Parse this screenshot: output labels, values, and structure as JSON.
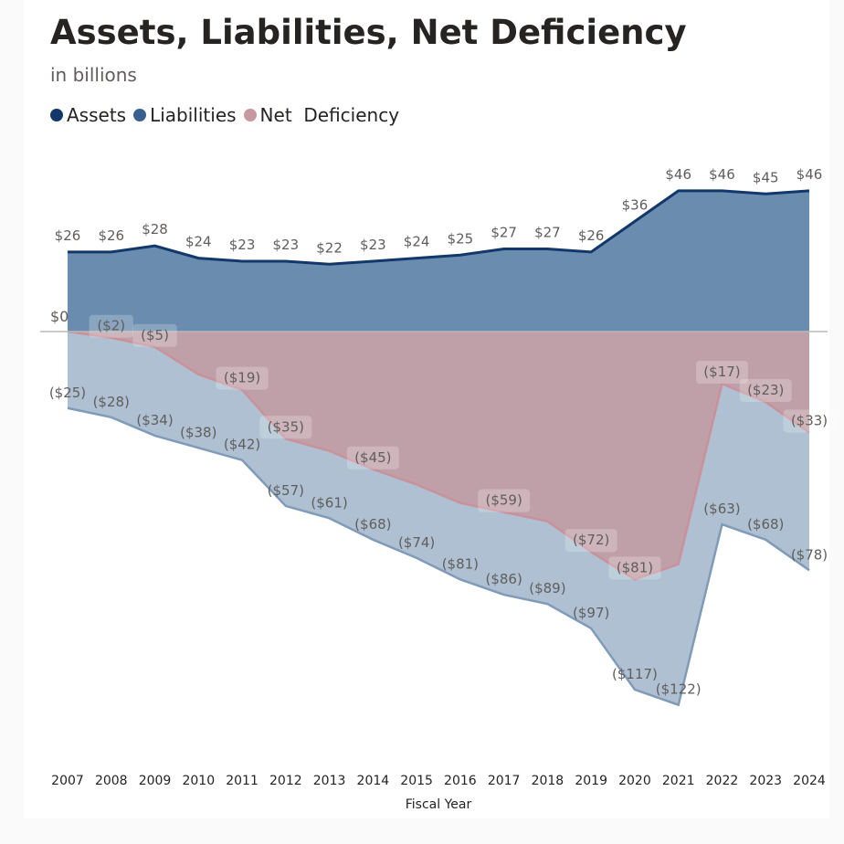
{
  "chart_data": {
    "type": "area",
    "title": "Assets, Liabilities, Net Deficiency",
    "subtitle": "in billions",
    "xlabel": "Fiscal Year",
    "legend_position": "top-left",
    "x": [
      "2007",
      "2008",
      "2009",
      "2010",
      "2011",
      "2012",
      "2013",
      "2014",
      "2015",
      "2016",
      "2017",
      "2018",
      "2019",
      "2020",
      "2021",
      "2022",
      "2023",
      "2024"
    ],
    "zero_label": "$0",
    "series": [
      {
        "name": "Assets",
        "color": "#12386b",
        "fill": "#6a8caf",
        "values": [
          26,
          26,
          28,
          24,
          23,
          23,
          22,
          23,
          24,
          25,
          27,
          27,
          26,
          36,
          46,
          46,
          45,
          46
        ],
        "labels": [
          "$26",
          "$26",
          "$28",
          "$24",
          "$23",
          "$23",
          "$22",
          "$23",
          "$24",
          "$25",
          "$27",
          "$27",
          "$26",
          "$36",
          "$46",
          "$46",
          "$45",
          "$46"
        ]
      },
      {
        "name": "Liabilities",
        "color": "#3a6090",
        "fill": "#aec0d1",
        "line": "#7f9bb8",
        "values": [
          -25,
          -28,
          -34,
          -38,
          -42,
          -57,
          -61,
          -68,
          -74,
          -81,
          -86,
          -89,
          -97,
          -117,
          -122,
          -63,
          -68,
          -78
        ],
        "labels": [
          "($25)",
          "($28)",
          "($34)",
          "($38)",
          "($42)",
          "($57)",
          "($61)",
          "($68)",
          "($74)",
          "($81)",
          "($86)",
          "($89)",
          "($97)",
          "($117)",
          "($122)",
          "($63)",
          "($68)",
          "($78)"
        ]
      },
      {
        "name": "Net  Deficiency",
        "color": "#c9979f",
        "fill": "#c0a0a8",
        "line": "#c9919a",
        "values": [
          0,
          -2,
          -5,
          -14,
          -19,
          -35,
          -39,
          -45,
          -50,
          -56,
          -59,
          -62,
          -72,
          -81,
          -76,
          -17,
          -23,
          -33
        ],
        "labels": [
          null,
          "($2)",
          "($5)",
          null,
          "($19)",
          "($35)",
          null,
          "($45)",
          null,
          null,
          "($59)",
          null,
          "($72)",
          "($81)",
          null,
          "($17)",
          "($23)",
          "($33)"
        ]
      }
    ]
  }
}
